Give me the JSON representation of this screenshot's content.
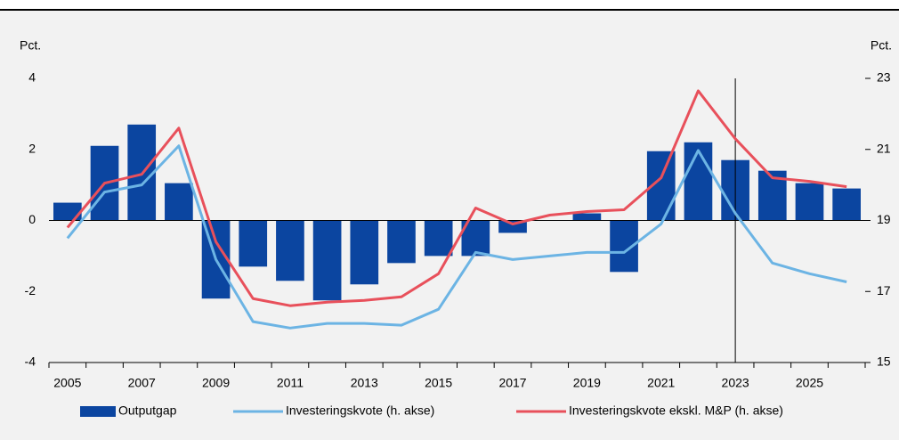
{
  "chart_data": {
    "type": "bar",
    "y_label": "Pct.",
    "y2_label": "Pct.",
    "categories": [
      "2005",
      null,
      "2007",
      null,
      "2009",
      null,
      "2011",
      null,
      "2013",
      null,
      "2015",
      null,
      "2017",
      null,
      "2019",
      null,
      "2021",
      null,
      "2023",
      null,
      "2025",
      null
    ],
    "ylim": [
      -4,
      4
    ],
    "yticks": [
      -4,
      -2,
      0,
      2,
      4
    ],
    "y2lim": [
      15,
      23
    ],
    "y2ticks": [
      15,
      17,
      19,
      21,
      23
    ],
    "series": [
      {
        "name": "Outputgap",
        "type": "bar",
        "color": "#0b45a0",
        "values": [
          0.5,
          2.1,
          2.7,
          1.05,
          -2.2,
          -1.3,
          -1.7,
          -2.25,
          -1.8,
          -1.2,
          -1.0,
          -1.0,
          -0.35,
          0,
          0.2,
          -1.45,
          1.95,
          2.2,
          1.7,
          1.4,
          1.05,
          0.9
        ]
      },
      {
        "name": "Investeringskvote (h. akse)",
        "type": "line",
        "axis": "y2",
        "color": "#6cb4e4",
        "values": [
          18.5,
          19.8,
          20.0,
          21.1,
          17.9,
          16.15,
          15.97,
          16.1,
          16.1,
          16.05,
          16.5,
          18.1,
          17.9,
          18.0,
          18.1,
          18.1,
          18.9,
          20.97,
          19.2,
          17.8,
          17.5,
          17.27
        ]
      },
      {
        "name": "Investeringskvote ekskl. M&P (h. akse)",
        "type": "line",
        "axis": "y2",
        "color": "#e8505b",
        "values": [
          18.8,
          20.05,
          20.3,
          21.6,
          18.4,
          16.8,
          16.6,
          16.7,
          16.75,
          16.85,
          17.5,
          19.35,
          18.9,
          19.15,
          19.25,
          19.3,
          20.2,
          22.65,
          21.3,
          20.2,
          20.1,
          19.95
        ]
      }
    ]
  }
}
